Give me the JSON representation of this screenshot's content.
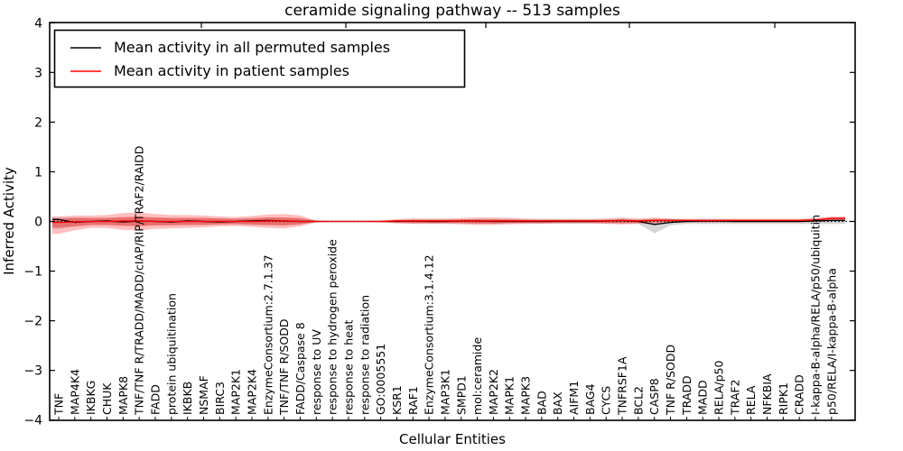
{
  "chart_data": {
    "type": "line",
    "title": "ceramide signaling pathway -- 513 samples",
    "xlabel": "Cellular Entities",
    "ylabel": "Inferred Activity",
    "ylim": [
      -4,
      4
    ],
    "ytick_values": [
      4,
      3,
      2,
      1,
      0,
      -1,
      -2,
      -3,
      -4
    ],
    "ytick_labels": [
      "4",
      "3",
      "2",
      "1",
      "0",
      "−1",
      "−2",
      "−3",
      "−4"
    ],
    "grid": false,
    "legend_position": "upper left",
    "zero_line": {
      "y": 0,
      "style": "dotted",
      "color": "#000000"
    },
    "categories": [
      "TNF",
      "MAP4K4",
      "IKBKG",
      "CHUK",
      "MAPK8",
      "TNF/TNF R/TRADD/MADD/cIAP/RIP/TRAF2/RAIDD",
      "FADD",
      "protein ubiquitination",
      "IKBKB",
      "NSMAF",
      "BIRC3",
      "MAP2K1",
      "MAP2K4",
      "EnzymeConsortium:2.7.1.37",
      "TNF/TNF R/SODD",
      "FADD/Caspase 8",
      "response to UV",
      "response to hydrogen peroxide",
      "response to heat",
      "response to radiation",
      "GO:0005551",
      "KSR1",
      "RAF1",
      "EnzymeConsortium:3.1.4.12",
      "MAP3K1",
      "SMPD1",
      "mol:ceramide",
      "MAP2K2",
      "MAPK1",
      "MAPK3",
      "BAD",
      "BAX",
      "AIFM1",
      "BAG4",
      "CYCS",
      "TNFRSF1A",
      "BCL2",
      "CASP8",
      "TNF R/SODD",
      "TRADD",
      "MADD",
      "RELA/p50",
      "TRAF2",
      "RELA",
      "NFKBIA",
      "RIPK1",
      "CRADD",
      "I-kappa-B-alpha/RELA/p50/ubiquitin",
      "p50/RELA/I-kappa-B-alpha"
    ],
    "series": [
      {
        "name": "Mean activity in all permuted samples",
        "color": "#000000",
        "values": [
          0.04,
          -0.02,
          0,
          0.01,
          -0.01,
          0.01,
          0,
          -0.01,
          0.01,
          0,
          -0.01,
          0,
          0.01,
          0.02,
          0.01,
          0,
          0,
          0,
          0,
          0,
          0,
          0,
          0.01,
          0,
          0,
          0.01,
          0.01,
          0,
          0,
          0,
          0,
          0,
          0,
          0,
          0.01,
          0.02,
          0,
          -0.06,
          -0.02,
          0,
          0.01,
          0.01,
          0,
          0,
          0,
          0,
          0,
          0.01,
          0.02
        ]
      },
      {
        "name": "Mean activity in patient samples",
        "color": "#ff0000",
        "values": [
          -0.02,
          -0.01,
          0,
          0,
          0.01,
          0.01,
          0,
          0,
          0,
          0,
          0,
          0,
          0,
          0.01,
          0.01,
          0,
          0,
          0,
          0,
          0,
          0,
          0.01,
          0.01,
          0.01,
          0.01,
          0.01,
          0.01,
          0.01,
          0.01,
          0.01,
          0.01,
          0.01,
          0.01,
          0.01,
          0.01,
          0.02,
          0.01,
          0.02,
          0.02,
          0.02,
          0.02,
          0.02,
          0.02,
          0.02,
          0.02,
          0.02,
          0.02,
          0.03,
          0.06
        ]
      }
    ],
    "bands": [
      {
        "name": "permuted-samples-range",
        "color": "#999999",
        "opacity": 0.4,
        "upper": [
          0.08,
          0.08,
          0.07,
          0.07,
          0.08,
          0.08,
          0.08,
          0.07,
          0.07,
          0.07,
          0.06,
          0.06,
          0.07,
          0.08,
          0.08,
          0.06,
          0.02,
          0.01,
          0.01,
          0.01,
          0.01,
          0.03,
          0.04,
          0.04,
          0.04,
          0.04,
          0.05,
          0.05,
          0.04,
          0.04,
          0.04,
          0.04,
          0.04,
          0.04,
          0.04,
          0.05,
          0.04,
          0.05,
          0.05,
          0.05,
          0.05,
          0.05,
          0.05,
          0.05,
          0.05,
          0.05,
          0.05,
          0.05,
          0.05
        ],
        "lower": [
          -0.15,
          -0.1,
          -0.07,
          -0.07,
          -0.08,
          -0.08,
          -0.08,
          -0.07,
          -0.07,
          -0.07,
          -0.06,
          -0.06,
          -0.07,
          -0.08,
          -0.08,
          -0.06,
          -0.02,
          -0.01,
          -0.01,
          -0.01,
          -0.01,
          -0.03,
          -0.04,
          -0.04,
          -0.04,
          -0.04,
          -0.05,
          -0.05,
          -0.04,
          -0.04,
          -0.04,
          -0.04,
          -0.04,
          -0.04,
          -0.04,
          -0.05,
          -0.04,
          -0.24,
          -0.08,
          -0.05,
          -0.05,
          -0.05,
          -0.05,
          -0.05,
          -0.05,
          -0.05,
          -0.05,
          -0.05,
          -0.05
        ]
      },
      {
        "name": "patient-samples-range-outer",
        "color": "#ff0000",
        "opacity": 0.25,
        "upper": [
          0.1,
          0.12,
          0.12,
          0.13,
          0.17,
          0.18,
          0.15,
          0.13,
          0.13,
          0.12,
          0.1,
          0.09,
          0.11,
          0.14,
          0.15,
          0.12,
          0.02,
          0.01,
          0.01,
          0.01,
          0.02,
          0.05,
          0.06,
          0.06,
          0.06,
          0.07,
          0.08,
          0.08,
          0.07,
          0.06,
          0.05,
          0.05,
          0.05,
          0.05,
          0.06,
          0.08,
          0.06,
          0.08,
          0.06,
          0.05,
          0.05,
          0.05,
          0.05,
          0.05,
          0.05,
          0.05,
          0.05,
          0.07,
          0.1
        ],
        "lower": [
          -0.25,
          -0.18,
          -0.13,
          -0.13,
          -0.17,
          -0.18,
          -0.15,
          -0.14,
          -0.13,
          -0.12,
          -0.1,
          -0.09,
          -0.11,
          -0.13,
          -0.14,
          -0.1,
          -0.02,
          -0.01,
          -0.01,
          -0.01,
          -0.02,
          -0.04,
          -0.05,
          -0.05,
          -0.05,
          -0.06,
          -0.07,
          -0.07,
          -0.06,
          -0.05,
          -0.05,
          -0.04,
          -0.04,
          -0.04,
          -0.05,
          -0.06,
          -0.05,
          -0.04,
          -0.03,
          -0.02,
          -0.02,
          -0.02,
          -0.02,
          -0.02,
          -0.02,
          -0.02,
          -0.02,
          0.0,
          0.02
        ]
      },
      {
        "name": "patient-samples-range-inner",
        "color": "#ff0000",
        "opacity": 0.3,
        "upper": [
          0.05,
          0.07,
          0.07,
          0.07,
          0.09,
          0.1,
          0.08,
          0.07,
          0.07,
          0.07,
          0.06,
          0.05,
          0.06,
          0.08,
          0.08,
          0.07,
          0.01,
          0.01,
          0.01,
          0.01,
          0.01,
          0.03,
          0.03,
          0.03,
          0.03,
          0.04,
          0.04,
          0.04,
          0.04,
          0.03,
          0.03,
          0.03,
          0.03,
          0.03,
          0.03,
          0.04,
          0.03,
          0.05,
          0.04,
          0.03,
          0.03,
          0.03,
          0.03,
          0.03,
          0.03,
          0.03,
          0.03,
          0.05,
          0.08
        ],
        "lower": [
          -0.12,
          -0.1,
          -0.07,
          -0.07,
          -0.09,
          -0.1,
          -0.08,
          -0.08,
          -0.07,
          -0.07,
          -0.06,
          -0.05,
          -0.06,
          -0.07,
          -0.08,
          -0.06,
          -0.01,
          -0.01,
          -0.01,
          -0.01,
          -0.01,
          -0.02,
          -0.03,
          -0.03,
          -0.03,
          -0.03,
          -0.04,
          -0.04,
          -0.03,
          -0.03,
          -0.03,
          -0.02,
          -0.02,
          -0.02,
          -0.03,
          -0.03,
          -0.03,
          -0.01,
          -0.01,
          -0.01,
          -0.01,
          -0.01,
          -0.01,
          -0.01,
          -0.01,
          -0.01,
          -0.01,
          0.01,
          0.04
        ]
      }
    ]
  },
  "legend": {
    "items": [
      {
        "label": "Mean activity in all permuted samples",
        "color": "#000000"
      },
      {
        "label": "Mean activity in patient samples",
        "color": "#ff0000"
      }
    ]
  }
}
